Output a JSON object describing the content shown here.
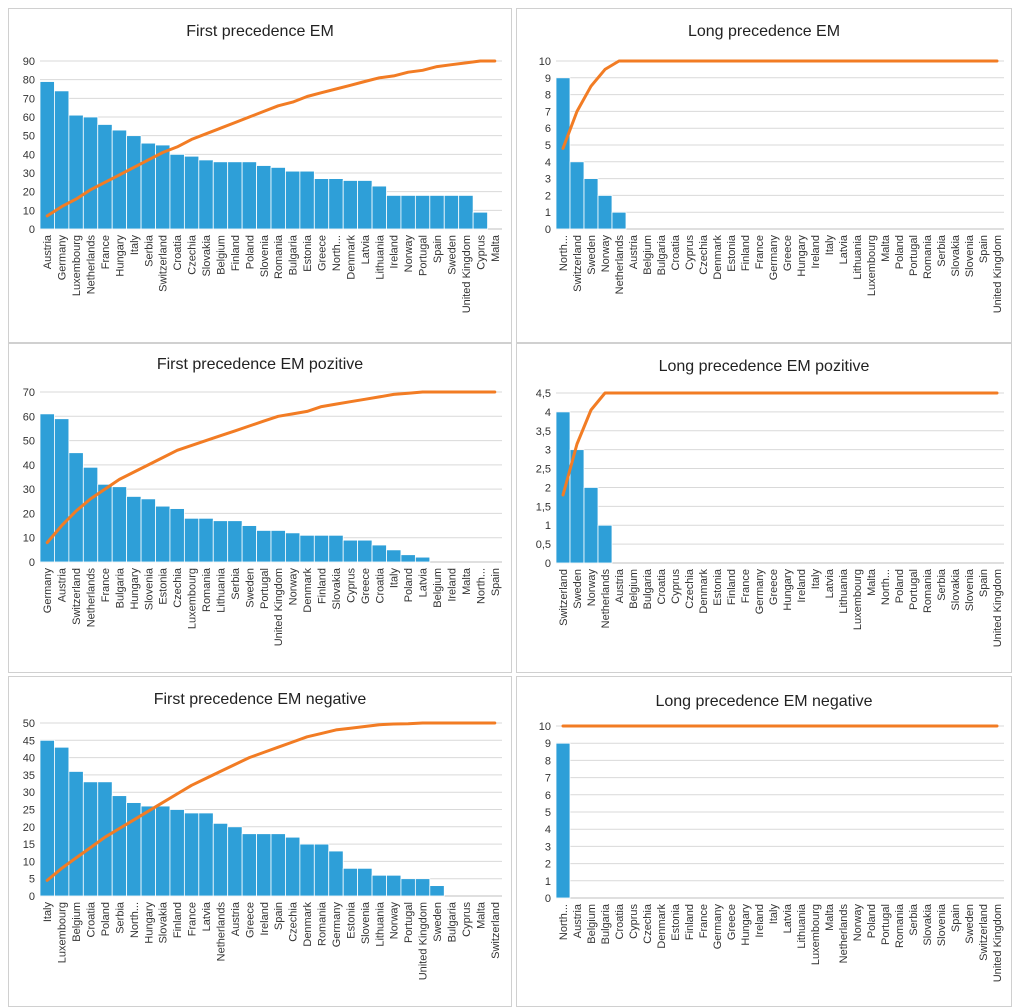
{
  "colors": {
    "bar": "#2e9fd8",
    "line": "#f27c24",
    "grid": "#d9d9d9",
    "axis": "#bfbfbf",
    "panel_border": "#d0d0d0"
  },
  "chart_data": [
    {
      "type": "bar",
      "title": "First precedence EM",
      "categories": [
        "Austria",
        "Germany",
        "Luxembourg",
        "Netherlands",
        "France",
        "Hungary",
        "Italy",
        "Serbia",
        "Switzerland",
        "Croatia",
        "Czechia",
        "Slovakia",
        "Belgium",
        "Finland",
        "Poland",
        "Slovenia",
        "Romania",
        "Bulgaria",
        "Estonia",
        "Greece",
        "North...",
        "Denmark",
        "Latvia",
        "Lithuania",
        "Ireland",
        "Norway",
        "Portugal",
        "Spain",
        "Sweden",
        "United Kingdom",
        "Cyprus",
        "Malta"
      ],
      "series": [
        {
          "type": "bar",
          "values": [
            79,
            74,
            61,
            60,
            56,
            53,
            50,
            46,
            45,
            40,
            39,
            37,
            36,
            36,
            36,
            34,
            33,
            31,
            31,
            27,
            27,
            26,
            26,
            23,
            18,
            18,
            18,
            18,
            18,
            18,
            9,
            0
          ]
        },
        {
          "type": "line",
          "values": [
            7,
            12,
            16,
            21,
            25,
            29,
            33,
            37,
            41,
            44,
            48,
            51,
            54,
            57,
            60,
            63,
            66,
            68,
            71,
            73,
            75,
            77,
            79,
            81,
            82,
            84,
            85,
            87,
            88,
            89,
            90,
            90
          ]
        }
      ],
      "ylim": [
        0,
        90
      ],
      "yticks": [
        "0",
        "10",
        "20",
        "30",
        "40",
        "50",
        "60",
        "70",
        "80",
        "90"
      ],
      "grid": true
    },
    {
      "type": "bar",
      "title": "Long precedence  EM",
      "categories": [
        "North...",
        "Switzerland",
        "Sweden",
        "Norway",
        "Netherlands",
        "Austria",
        "Belgium",
        "Bulgaria",
        "Croatia",
        "Cyprus",
        "Czechia",
        "Denmark",
        "Estonia",
        "Finland",
        "France",
        "Germany",
        "Greece",
        "Hungary",
        "Ireland",
        "Italy",
        "Latvia",
        "Lithuania",
        "Luxembourg",
        "Malta",
        "Poland",
        "Portugal",
        "Romania",
        "Serbia",
        "Slovakia",
        "Slovenia",
        "Spain",
        "United Kingdom"
      ],
      "series": [
        {
          "type": "bar",
          "values": [
            9,
            4,
            3,
            2,
            1,
            0,
            0,
            0,
            0,
            0,
            0,
            0,
            0,
            0,
            0,
            0,
            0,
            0,
            0,
            0,
            0,
            0,
            0,
            0,
            0,
            0,
            0,
            0,
            0,
            0,
            0,
            0
          ]
        },
        {
          "type": "line",
          "values": [
            4.8,
            7,
            8.5,
            9.5,
            10,
            10,
            10,
            10,
            10,
            10,
            10,
            10,
            10,
            10,
            10,
            10,
            10,
            10,
            10,
            10,
            10,
            10,
            10,
            10,
            10,
            10,
            10,
            10,
            10,
            10,
            10,
            10
          ]
        }
      ],
      "ylim": [
        0,
        10
      ],
      "yticks": [
        "0",
        "1",
        "2",
        "3",
        "4",
        "5",
        "6",
        "7",
        "8",
        "9",
        "10"
      ],
      "grid": true
    },
    {
      "type": "bar",
      "title": "First precedence  EM pozitive",
      "categories": [
        "Germany",
        "Austria",
        "Switzerland",
        "Netherlands",
        "France",
        "Bulgaria",
        "Hungary",
        "Slovenia",
        "Estonia",
        "Czechia",
        "Luxembourg",
        "Romania",
        "Lithuania",
        "Serbia",
        "Sweden",
        "Portugal",
        "United Kingdom",
        "Norway",
        "Denmark",
        "Finland",
        "Slovakia",
        "Cyprus",
        "Greece",
        "Croatia",
        "Italy",
        "Poland",
        "Latvia",
        "Belgium",
        "Ireland",
        "Malta",
        "North...",
        "Spain"
      ],
      "series": [
        {
          "type": "bar",
          "values": [
            61,
            59,
            45,
            39,
            32,
            31,
            27,
            26,
            23,
            22,
            18,
            18,
            17,
            17,
            15,
            13,
            13,
            12,
            11,
            11,
            11,
            9,
            9,
            7,
            5,
            3,
            2,
            0,
            0,
            0,
            0,
            0
          ]
        },
        {
          "type": "line",
          "values": [
            8,
            15,
            21,
            26,
            30,
            34,
            37,
            40,
            43,
            46,
            48,
            50,
            52,
            54,
            56,
            58,
            60,
            61,
            62,
            64,
            65,
            66,
            67,
            68,
            69,
            69.5,
            70,
            70,
            70,
            70,
            70,
            70
          ]
        }
      ],
      "ylim": [
        0,
        70
      ],
      "yticks": [
        "0",
        "10",
        "20",
        "30",
        "40",
        "50",
        "60",
        "70"
      ],
      "grid": true
    },
    {
      "type": "bar",
      "title": "Long precedence  EM pozitive",
      "categories": [
        "Switzerland",
        "Sweden",
        "Norway",
        "Netherlands",
        "Austria",
        "Belgium",
        "Bulgaria",
        "Croatia",
        "Cyprus",
        "Czechia",
        "Denmark",
        "Estonia",
        "Finland",
        "France",
        "Germany",
        "Greece",
        "Hungary",
        "Ireland",
        "Italy",
        "Latvia",
        "Lithuania",
        "Luxembourg",
        "Malta",
        "North...",
        "Poland",
        "Portugal",
        "Romania",
        "Serbia",
        "Slovakia",
        "Slovenia",
        "Spain",
        "United Kingdom"
      ],
      "series": [
        {
          "type": "bar",
          "values": [
            4,
            3,
            2,
            1,
            0,
            0,
            0,
            0,
            0,
            0,
            0,
            0,
            0,
            0,
            0,
            0,
            0,
            0,
            0,
            0,
            0,
            0,
            0,
            0,
            0,
            0,
            0,
            0,
            0,
            0,
            0,
            0
          ]
        },
        {
          "type": "line",
          "values": [
            1.8,
            3.15,
            4.05,
            4.5,
            4.5,
            4.5,
            4.5,
            4.5,
            4.5,
            4.5,
            4.5,
            4.5,
            4.5,
            4.5,
            4.5,
            4.5,
            4.5,
            4.5,
            4.5,
            4.5,
            4.5,
            4.5,
            4.5,
            4.5,
            4.5,
            4.5,
            4.5,
            4.5,
            4.5,
            4.5,
            4.5,
            4.5
          ]
        }
      ],
      "ylim": [
        0,
        4.5
      ],
      "yticks": [
        "0",
        "0,5",
        "1",
        "1,5",
        "2",
        "2,5",
        "3",
        "3,5",
        "4",
        "4,5"
      ],
      "grid": true
    },
    {
      "type": "bar",
      "title": "First precedence  EM negative",
      "categories": [
        "Italy",
        "Luxembourg",
        "Belgium",
        "Croatia",
        "Poland",
        "Serbia",
        "North...",
        "Hungary",
        "Slovakia",
        "Finland",
        "France",
        "Latvia",
        "Netherlands",
        "Austria",
        "Greece",
        "Ireland",
        "Spain",
        "Czechia",
        "Denmark",
        "Romania",
        "Germany",
        "Estonia",
        "Slovenia",
        "Lithuania",
        "Norway",
        "Portugal",
        "United Kingdom",
        "Sweden",
        "Bulgaria",
        "Cyprus",
        "Malta",
        "Switzerland"
      ],
      "series": [
        {
          "type": "bar",
          "values": [
            45,
            43,
            36,
            33,
            33,
            29,
            27,
            26,
            26,
            25,
            24,
            24,
            21,
            20,
            18,
            18,
            18,
            17,
            15,
            15,
            13,
            8,
            8,
            6,
            6,
            5,
            5,
            3,
            0,
            0,
            0,
            0
          ]
        },
        {
          "type": "line",
          "values": [
            4.5,
            8,
            11,
            14,
            17,
            19.5,
            22,
            24.5,
            27,
            29.5,
            32,
            34,
            36,
            38,
            40,
            41.5,
            43,
            44.5,
            46,
            47,
            48,
            48.5,
            49,
            49.5,
            49.7,
            49.8,
            50,
            50,
            50,
            50,
            50,
            50
          ]
        }
      ],
      "ylim": [
        0,
        50
      ],
      "yticks": [
        "0",
        "5",
        "10",
        "15",
        "20",
        "25",
        "30",
        "35",
        "40",
        "45",
        "50"
      ],
      "grid": true
    },
    {
      "type": "bar",
      "title": "Long precedence  EM negative",
      "categories": [
        "North...",
        "Austria",
        "Belgium",
        "Bulgaria",
        "Croatia",
        "Cyprus",
        "Czechia",
        "Denmark",
        "Estonia",
        "Finland",
        "France",
        "Germany",
        "Greece",
        "Hungary",
        "Ireland",
        "Italy",
        "Latvia",
        "Lithuania",
        "Luxembourg",
        "Malta",
        "Netherlands",
        "Norway",
        "Poland",
        "Portugal",
        "Romania",
        "Serbia",
        "Slovakia",
        "Slovenia",
        "Spain",
        "Sweden",
        "Switzerland",
        "United Kingdom"
      ],
      "series": [
        {
          "type": "bar",
          "values": [
            9,
            0,
            0,
            0,
            0,
            0,
            0,
            0,
            0,
            0,
            0,
            0,
            0,
            0,
            0,
            0,
            0,
            0,
            0,
            0,
            0,
            0,
            0,
            0,
            0,
            0,
            0,
            0,
            0,
            0,
            0,
            0
          ]
        },
        {
          "type": "line",
          "values": [
            10,
            10,
            10,
            10,
            10,
            10,
            10,
            10,
            10,
            10,
            10,
            10,
            10,
            10,
            10,
            10,
            10,
            10,
            10,
            10,
            10,
            10,
            10,
            10,
            10,
            10,
            10,
            10,
            10,
            10,
            10,
            10
          ]
        }
      ],
      "ylim": [
        0,
        10
      ],
      "yticks": [
        "0",
        "1",
        "2",
        "3",
        "4",
        "5",
        "6",
        "7",
        "8",
        "9",
        "10"
      ],
      "grid": true
    }
  ]
}
